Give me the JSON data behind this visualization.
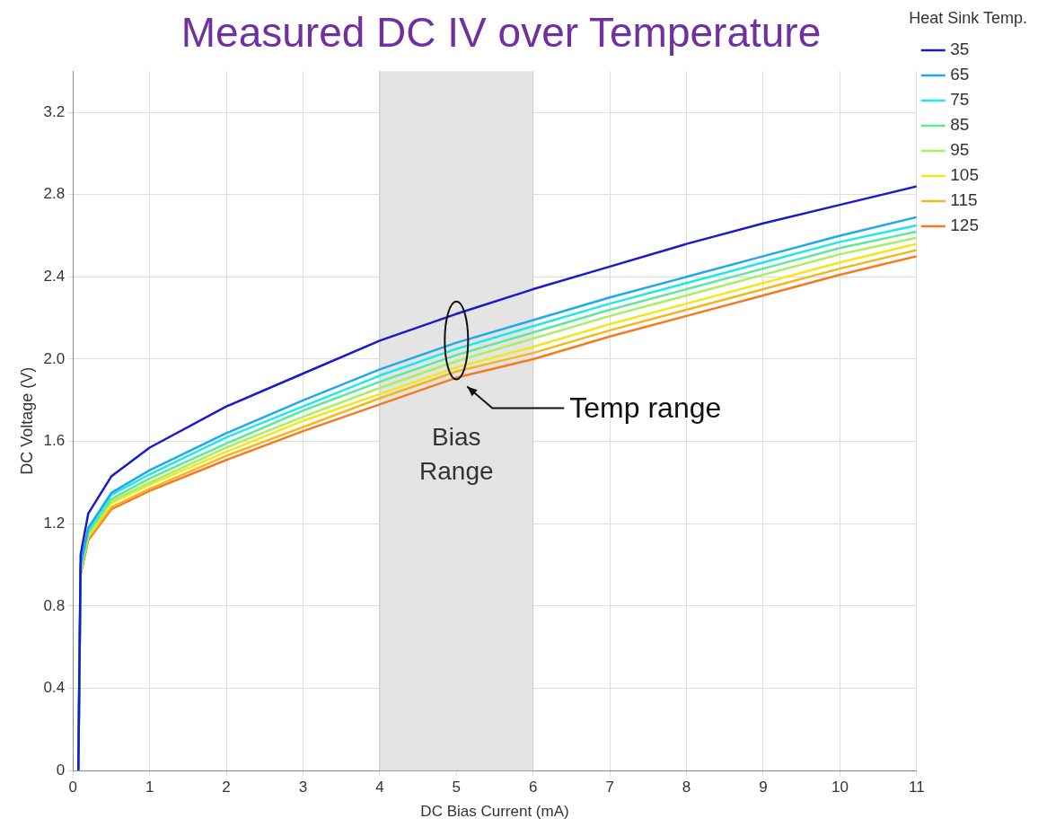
{
  "chart_data": {
    "type": "line",
    "title": "Measured DC IV over Temperature",
    "xlabel": "DC Bias Current (mA)",
    "ylabel": "DC Voltage (V)",
    "legend_title": "Heat Sink Temp.",
    "legend": "right",
    "grid": true,
    "marker": "none",
    "line_style": "solid",
    "x": [
      0.07,
      0.1,
      0.2,
      0.5,
      1,
      2,
      3,
      4,
      5,
      6,
      7,
      8,
      9,
      10,
      11
    ],
    "xlim": [
      0,
      11
    ],
    "xticks": [
      0,
      1,
      2,
      3,
      4,
      5,
      6,
      7,
      8,
      9,
      10,
      11
    ],
    "ylim": [
      0,
      3.4
    ],
    "yticks": [
      0,
      0.4,
      0.8,
      1.2,
      1.6,
      {
        "value": 2,
        "label": "2.0"
      },
      2.4,
      2.8,
      3.2
    ],
    "series": [
      {
        "name": "35",
        "color": "#1a1acd",
        "values": [
          0,
          1.05,
          1.25,
          1.43,
          1.57,
          1.77,
          1.93,
          2.09,
          2.22,
          2.34,
          2.45,
          2.56,
          2.66,
          2.75,
          2.84
        ]
      },
      {
        "name": "65",
        "color": "#1ea8f0",
        "values": [
          0,
          1.0,
          1.18,
          1.35,
          1.46,
          1.64,
          1.8,
          1.95,
          2.08,
          2.19,
          2.3,
          2.4,
          2.5,
          2.6,
          2.69
        ]
      },
      {
        "name": "75",
        "color": "#20e8e8",
        "values": [
          0,
          0.99,
          1.17,
          1.34,
          1.44,
          1.62,
          1.77,
          1.92,
          2.05,
          2.16,
          2.27,
          2.37,
          2.47,
          2.57,
          2.65
        ]
      },
      {
        "name": "85",
        "color": "#5ee89a",
        "values": [
          0,
          0.98,
          1.16,
          1.32,
          1.42,
          1.59,
          1.75,
          1.89,
          2.02,
          2.13,
          2.24,
          2.34,
          2.44,
          2.54,
          2.62
        ]
      },
      {
        "name": "95",
        "color": "#a8f060",
        "values": [
          0,
          0.97,
          1.15,
          1.31,
          1.4,
          1.57,
          1.72,
          1.86,
          1.99,
          2.1,
          2.21,
          2.31,
          2.41,
          2.51,
          2.59
        ]
      },
      {
        "name": "105",
        "color": "#f0e81a",
        "values": [
          0,
          0.97,
          1.14,
          1.3,
          1.39,
          1.55,
          1.7,
          1.83,
          1.96,
          2.06,
          2.17,
          2.27,
          2.37,
          2.47,
          2.56
        ]
      },
      {
        "name": "115",
        "color": "#f8b41a",
        "values": [
          0,
          0.96,
          1.13,
          1.28,
          1.37,
          1.53,
          1.67,
          1.81,
          1.94,
          2.03,
          2.14,
          2.24,
          2.34,
          2.44,
          2.53
        ]
      },
      {
        "name": "125",
        "color": "#f87820",
        "values": [
          0,
          0.95,
          1.12,
          1.27,
          1.36,
          1.51,
          1.65,
          1.78,
          1.91,
          2.0,
          2.11,
          2.21,
          2.31,
          2.41,
          2.5
        ]
      }
    ],
    "bands": [
      {
        "axis": "x",
        "from": 4,
        "to": 6,
        "label": "Bias Range",
        "color": "#e4e4e4"
      }
    ],
    "annotations": [
      "Temp range"
    ]
  }
}
